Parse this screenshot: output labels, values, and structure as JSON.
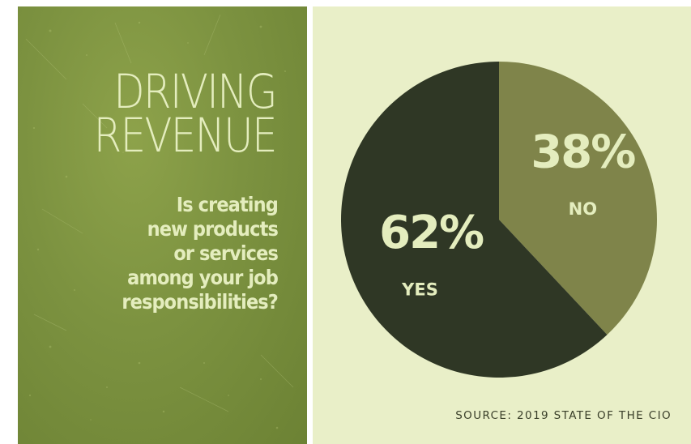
{
  "headline": [
    "DRIVING",
    "REVENUE"
  ],
  "question": [
    "Is creating",
    "new products",
    "or services",
    "among your job",
    "responsibilities?"
  ],
  "chart_data": {
    "type": "pie",
    "slices": [
      {
        "label": "NO",
        "value": 38,
        "value_label": "38%",
        "color": "#7f844a"
      },
      {
        "label": "YES",
        "value": 62,
        "value_label": "62%",
        "color": "#2f3725"
      }
    ],
    "start": "12 o'clock, clockwise",
    "label_color": "#e4edbe"
  },
  "source": "SOURCE: 2019 STATE OF THE CIO",
  "colors": {
    "left_panel": "#7c9240",
    "right_panel": "#e9efc8",
    "text_light": "#e4edbe"
  }
}
